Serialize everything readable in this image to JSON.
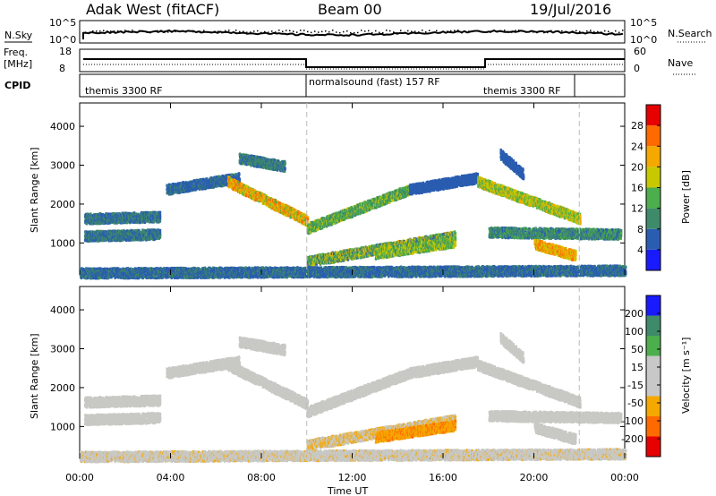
{
  "header": {
    "station": "Adak West (fitACF)",
    "beam": "Beam 00",
    "date": "19/Jul/2016"
  },
  "top_panels": {
    "nsky_label": "N.Sky",
    "nsearch_label": "N.Search",
    "left_ticks": [
      "10^5",
      "10^0"
    ],
    "right_ticks": [
      "10^5",
      "10^0"
    ],
    "freq_label_1": "Freq.",
    "freq_label_2": "[MHz]",
    "freq_ticks": [
      "18",
      "8"
    ],
    "nave_label": "Nave",
    "nave_ticks": [
      "60",
      "0"
    ],
    "cpid_label": "CPID",
    "cpid_segments": [
      "themis 3300 RF",
      "normalsound (fast) 157 RF",
      "themis 3300 RF"
    ]
  },
  "colors": {
    "power": [
      "#1a1aff",
      "#2a5db0",
      "#3f8a6a",
      "#4cae4c",
      "#c8c800",
      "#f5a800",
      "#ff6a00",
      "#e60000"
    ],
    "velocity": [
      "#e60000",
      "#ff6a00",
      "#f5a800",
      "#c8c8c8",
      "#c8c8c8",
      "#4cae4c",
      "#3f8a6a",
      "#1a1aff"
    ],
    "velocity_mid": "#c8c8c4"
  },
  "chart_data": {
    "type": "heatmap",
    "x_range_hours": [
      0,
      24
    ],
    "x_ticks": [
      "00:00",
      "04:00",
      "08:00",
      "12:00",
      "16:00",
      "20:00",
      "00:00"
    ],
    "xlabel": "Time UT",
    "y_range_km": [
      180,
      4600
    ],
    "y_ticks": [
      "1000",
      "2000",
      "3000",
      "4000"
    ],
    "ylabel": "Slant Range [km]",
    "mode_change_times_hours": [
      10,
      22
    ],
    "panels": [
      {
        "name": "power",
        "colorbar_label": "Power [dB]",
        "colorbar_ticks": [
          "4",
          "8",
          "12",
          "16",
          "20",
          "24",
          "28"
        ],
        "colorbar_range": [
          0,
          32
        ]
      },
      {
        "name": "velocity",
        "colorbar_label": "Velocity [m s⁻¹]",
        "colorbar_ticks": [
          "-200",
          "-100",
          "-50",
          "-15",
          "15",
          "50",
          "100",
          "200"
        ]
      }
    ],
    "echo_bands": [
      {
        "t": [
          0.2,
          3.5
        ],
        "r": [
          1650,
          1700
        ],
        "p": [
          6,
          10
        ],
        "v": [
          0,
          5
        ]
      },
      {
        "t": [
          0.2,
          3.5
        ],
        "r": [
          1200,
          1250
        ],
        "p": [
          6,
          10
        ],
        "v": [
          -5,
          5
        ]
      },
      {
        "t": [
          3.8,
          7.0
        ],
        "r": [
          2400,
          2700
        ],
        "p": [
          5,
          9
        ],
        "v": [
          -10,
          10
        ]
      },
      {
        "t": [
          6.5,
          10.0
        ],
        "r": [
          2600,
          1600
        ],
        "p": [
          14,
          28
        ],
        "v": [
          -10,
          10
        ]
      },
      {
        "t": [
          7.0,
          9.0
        ],
        "r": [
          3200,
          3000
        ],
        "p": [
          6,
          12
        ],
        "v": [
          -15,
          15
        ]
      },
      {
        "t": [
          10.0,
          14.5
        ],
        "r": [
          1400,
          2400
        ],
        "p": [
          8,
          18
        ],
        "v": [
          -10,
          10
        ]
      },
      {
        "t": [
          14.5,
          17.5
        ],
        "r": [
          2400,
          2700
        ],
        "p": [
          4,
          8
        ],
        "v": [
          0,
          10
        ]
      },
      {
        "t": [
          10.0,
          16.5
        ],
        "r": [
          550,
          1200
        ],
        "p": [
          6,
          22
        ],
        "v": [
          -40,
          20
        ]
      },
      {
        "t": [
          13.0,
          16.5
        ],
        "r": [
          750,
          1050
        ],
        "p": [
          10,
          20
        ],
        "v": [
          -60,
          -25
        ]
      },
      {
        "t": [
          17.5,
          22.0
        ],
        "r": [
          2600,
          1650
        ],
        "p": [
          12,
          22
        ],
        "v": [
          -10,
          10
        ]
      },
      {
        "t": [
          18.0,
          23.8
        ],
        "r": [
          1300,
          1250
        ],
        "p": [
          6,
          14
        ],
        "v": [
          -15,
          15
        ]
      },
      {
        "t": [
          20.0,
          21.8
        ],
        "r": [
          1000,
          700
        ],
        "p": [
          16,
          28
        ],
        "v": [
          -15,
          5
        ]
      },
      {
        "t": [
          18.5,
          19.5
        ],
        "r": [
          3300,
          2800
        ],
        "p": [
          4,
          8
        ],
        "v": [
          -5,
          5
        ]
      },
      {
        "t": [
          0.0,
          24.0
        ],
        "r": [
          250,
          320
        ],
        "p": [
          4,
          10
        ],
        "v": [
          -20,
          20
        ]
      }
    ]
  }
}
